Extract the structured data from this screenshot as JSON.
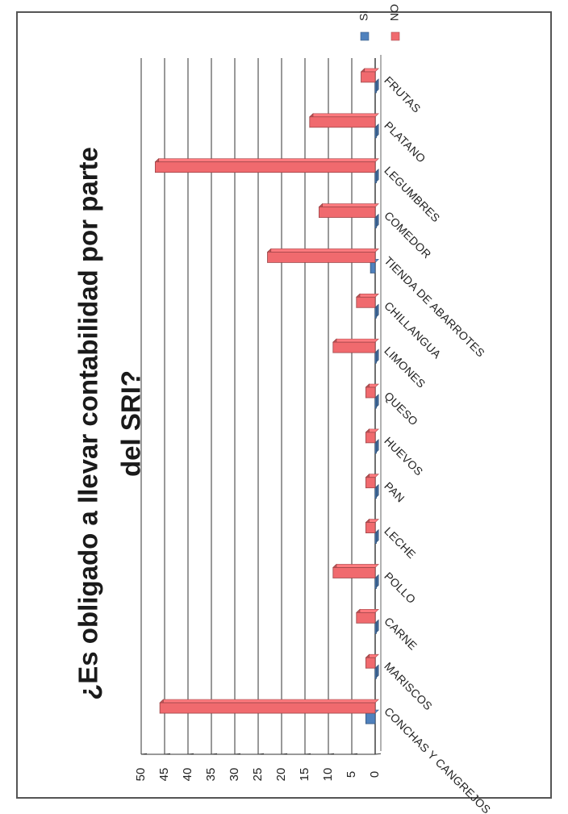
{
  "chart_data": {
    "type": "bar",
    "orientation": "horizontal",
    "title_lines": [
      "¿Es obligado a llevar contabilidad por parte",
      "del SRI?"
    ],
    "categories": [
      "CONCHAS Y CANGREJOS",
      "MARISCOS",
      "CARNE",
      "POLLO",
      "LECHE",
      "PAN",
      "HUEVOS",
      "QUESO",
      "LIMONES",
      "CHILLANGUA",
      "TIENDA DE ABARROTES",
      "COMEDOR",
      "LEGUMBRES",
      "PLATANO",
      "FRUTAS"
    ],
    "series": [
      {
        "name": "SI",
        "color": "#4f81bd",
        "values": [
          2,
          0,
          0,
          0,
          0,
          0,
          0,
          0,
          0,
          0,
          1,
          0,
          0,
          0,
          0
        ]
      },
      {
        "name": "NO",
        "color": "#f06a6e",
        "values": [
          46,
          2,
          4,
          9,
          2,
          2,
          2,
          2,
          9,
          4,
          23,
          12,
          47,
          14,
          3
        ]
      }
    ],
    "xlim": [
      0,
      50
    ],
    "ticks": [
      "0",
      "5",
      "10",
      "15",
      "20",
      "25",
      "30",
      "35",
      "40",
      "45",
      "50"
    ],
    "grid": true,
    "legend_position": "top-right"
  }
}
